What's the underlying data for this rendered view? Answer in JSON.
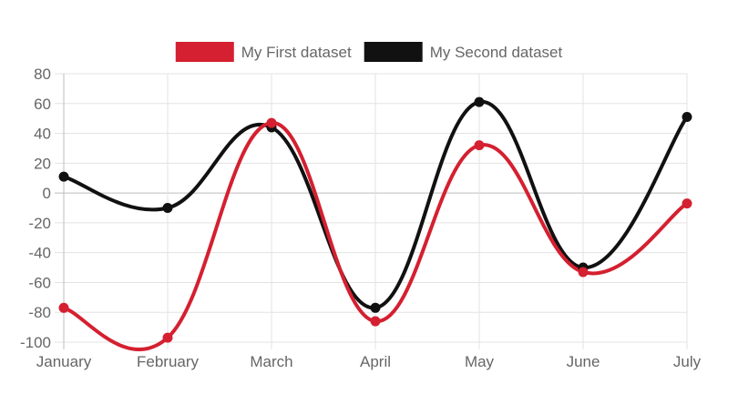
{
  "chart_data": {
    "type": "line",
    "categories": [
      "January",
      "February",
      "March",
      "April",
      "May",
      "June",
      "July"
    ],
    "series": [
      {
        "name": "My First dataset",
        "color": "#d42030",
        "values": [
          -77,
          -97,
          47,
          -86,
          32,
          -53,
          -7
        ]
      },
      {
        "name": "My Second dataset",
        "color": "#111111",
        "values": [
          11,
          -10,
          44,
          -77,
          61,
          -50,
          51
        ]
      }
    ],
    "ylim": [
      -100,
      80
    ],
    "yticks": [
      80,
      60,
      40,
      20,
      0,
      -20,
      -40,
      -60,
      -80,
      -100
    ],
    "grid": true,
    "legend_position": "top",
    "curve": "smooth",
    "title": "",
    "xlabel": "",
    "ylabel": ""
  }
}
